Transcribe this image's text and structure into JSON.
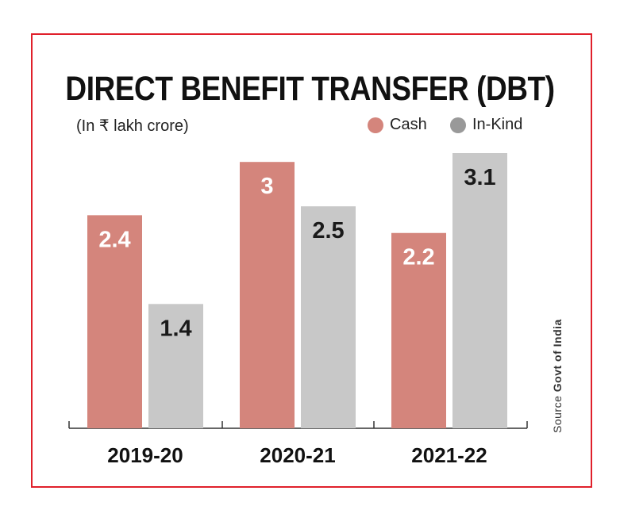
{
  "chart_data": {
    "type": "bar",
    "title": "DIRECT BENEFIT TRANSFER (DBT)",
    "subtitle": "(In ₹ lakh crore)",
    "categories": [
      "2019-20",
      "2020-21",
      "2021-22"
    ],
    "series": [
      {
        "name": "Cash",
        "values": [
          2.4,
          3,
          2.2
        ],
        "color": "#d4857c",
        "label_color": "#ffffff"
      },
      {
        "name": "In-Kind",
        "values": [
          1.4,
          2.5,
          3.1
        ],
        "color": "#c8c8c8",
        "label_color": "#1a1a1a"
      }
    ],
    "ylim": [
      0,
      3.1
    ],
    "legend_position": "top-right",
    "grid": false,
    "source": {
      "prefix": "Source",
      "name": "Govt of India"
    }
  },
  "colors": {
    "accent": "#e0202b",
    "legend_cash": "#d4857c",
    "legend_inkind": "#999999"
  }
}
